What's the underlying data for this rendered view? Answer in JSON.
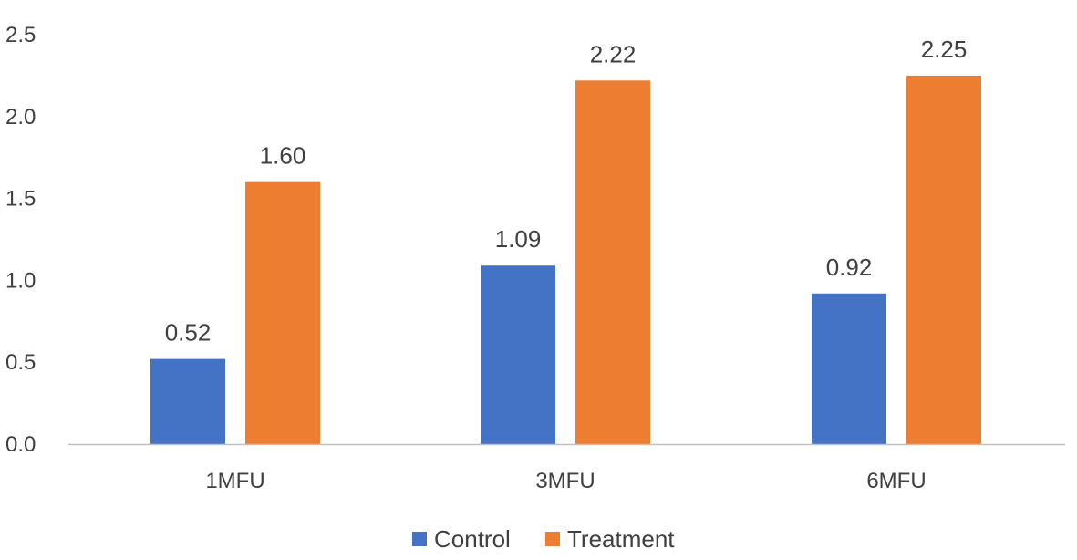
{
  "chart_data": {
    "type": "bar",
    "title": "",
    "xlabel": "",
    "ylabel": "",
    "categories": [
      "1MFU",
      "3MFU",
      "6MFU"
    ],
    "series": [
      {
        "name": "Control",
        "values": [
          0.52,
          1.09,
          0.92
        ],
        "labels": [
          "0.52",
          "1.09",
          "0.92"
        ],
        "color": "#4472C4"
      },
      {
        "name": "Treatment",
        "values": [
          1.6,
          2.22,
          2.25
        ],
        "labels": [
          "1.60",
          "2.22",
          "2.25"
        ],
        "color": "#ED7D31"
      }
    ],
    "y_ticks": [
      "0.0",
      "0.5",
      "1.0",
      "1.5",
      "2.0",
      "2.5"
    ],
    "ylim": [
      0,
      2.5
    ],
    "grid": false,
    "legend_position": "bottom-center",
    "axis_color": "#BFBFBF"
  }
}
